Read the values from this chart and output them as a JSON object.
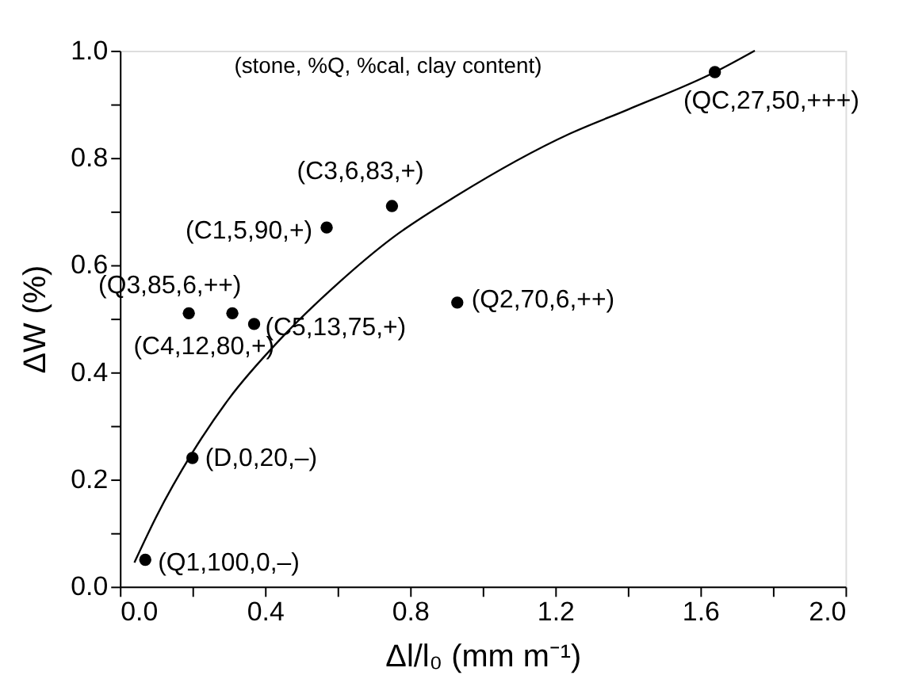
{
  "chart_data": {
    "type": "scatter",
    "xlabel": "Δl/l₀ (mm m⁻¹)",
    "ylabel": "ΔW (%)",
    "marker": "circle",
    "grid": false,
    "xlim": [
      0,
      2.0
    ],
    "ylim": [
      0,
      1.0
    ],
    "xticks": [
      {
        "value": 0,
        "label": "0.0"
      },
      {
        "value": 0.2,
        "label": null
      },
      {
        "value": 0.4,
        "label": "0.4"
      },
      {
        "value": 0.6,
        "label": null
      },
      {
        "value": 0.8,
        "label": "0.8"
      },
      {
        "value": 1.0,
        "label": null
      },
      {
        "value": 1.2,
        "label": "1.2"
      },
      {
        "value": 1.4,
        "label": null
      },
      {
        "value": 1.6,
        "label": "1.6"
      },
      {
        "value": 1.8,
        "label": null
      },
      {
        "value": 2.0,
        "label": "2.0"
      }
    ],
    "yticks": [
      {
        "value": 0,
        "label": "0.0"
      },
      {
        "value": 0.1,
        "label": null
      },
      {
        "value": 0.2,
        "label": "0.2"
      },
      {
        "value": 0.3,
        "label": null
      },
      {
        "value": 0.4,
        "label": "0.4"
      },
      {
        "value": 0.5,
        "label": null
      },
      {
        "value": 0.6,
        "label": "0.6"
      },
      {
        "value": 0.7,
        "label": null
      },
      {
        "value": 0.8,
        "label": "0.8"
      },
      {
        "value": 0.9,
        "label": null
      },
      {
        "value": 1.0,
        "label": "1.0"
      }
    ],
    "series": [
      {
        "color": "#000000",
        "x": [
          0.07,
          0.2,
          0.19,
          0.31,
          0.37,
          0.57,
          0.75,
          0.93,
          1.64
        ],
        "values": [
          0.05,
          0.24,
          0.51,
          0.51,
          0.49,
          0.67,
          0.71,
          0.53,
          0.96
        ]
      },
      {
        "type": "line",
        "color": "#000000",
        "marker": "none",
        "x": [
          0.04,
          0.1,
          0.2,
          0.3,
          0.44,
          0.6,
          0.75,
          0.93,
          1.24,
          1.4,
          1.64,
          1.75
        ],
        "values": [
          0.045,
          0.13,
          0.25,
          0.35,
          0.46,
          0.565,
          0.65,
          0.73,
          0.845,
          0.89,
          0.96,
          1.0
        ]
      }
    ],
    "annotations": [
      "(stone, %Q, %cal, clay content)",
      {
        "text": "(Q1,100,0,–)",
        "x": 0.07,
        "y": 0.05
      },
      {
        "text": "(D,0,20,–)",
        "x": 0.2,
        "y": 0.24
      },
      {
        "text": "(Q3,85,6,++)",
        "x": 0.19,
        "y": 0.51
      },
      {
        "text": "(C4,12,80,+)",
        "x": 0.31,
        "y": 0.51
      },
      {
        "text": "(C5,13,75,+)",
        "x": 0.37,
        "y": 0.49
      },
      {
        "text": "(C1,5,90,+)",
        "x": 0.57,
        "y": 0.67
      },
      {
        "text": "(C3,6,83,+)",
        "x": 0.75,
        "y": 0.71
      },
      {
        "text": "(Q2,70,6,++)",
        "x": 0.93,
        "y": 0.53
      },
      {
        "text": "(QC,27,50,+++)",
        "x": 1.64,
        "y": 0.96
      }
    ]
  }
}
